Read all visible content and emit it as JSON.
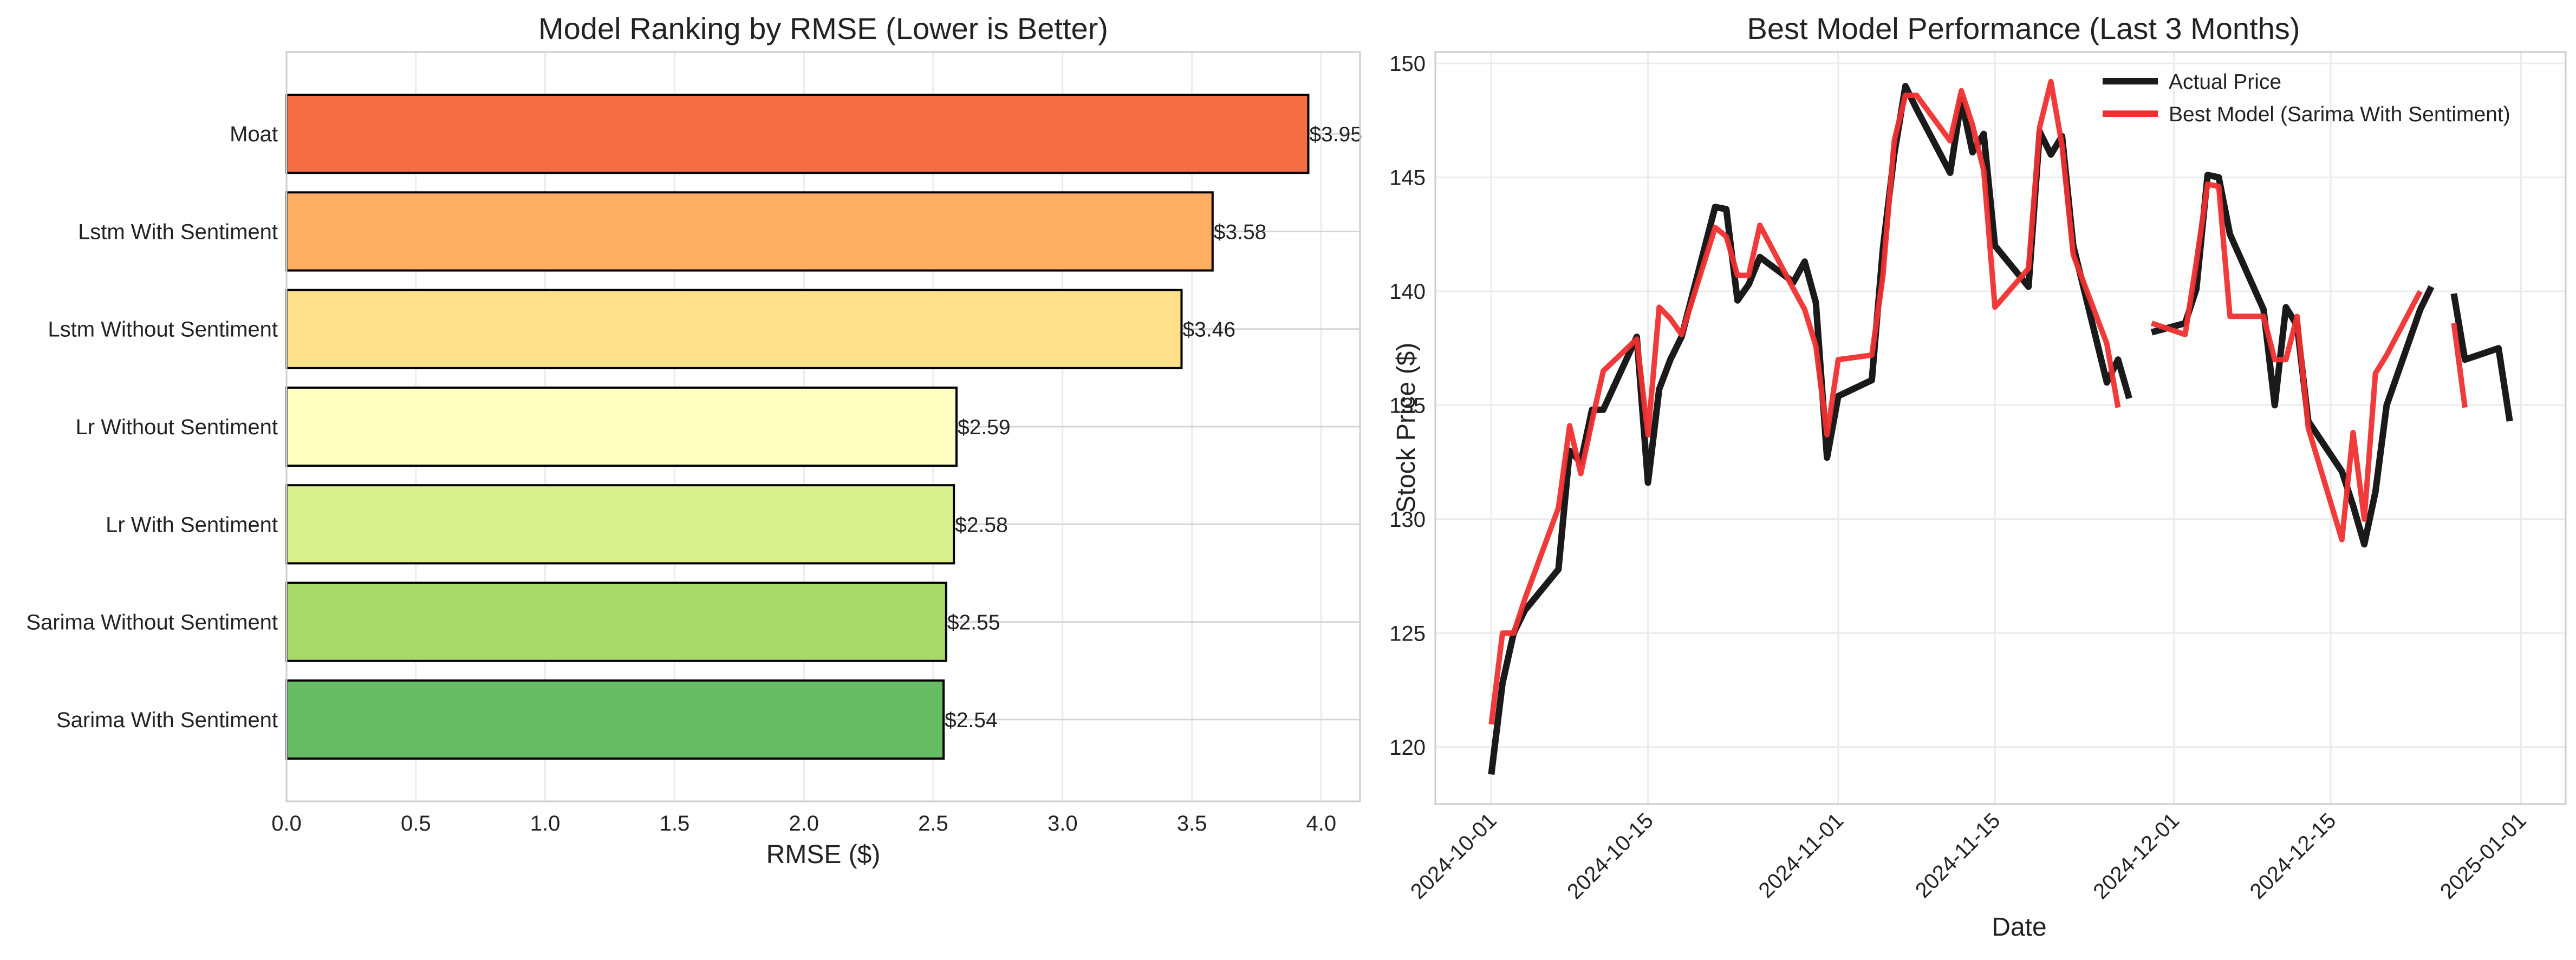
{
  "chart_data": [
    {
      "type": "bar",
      "orientation": "horizontal",
      "title": "Model Ranking by RMSE (Lower is Better)",
      "xlabel": "RMSE ($)",
      "ylabel": "",
      "xlim": [
        0,
        4.15
      ],
      "xticks": [
        "0.0",
        "0.5",
        "1.0",
        "1.5",
        "2.0",
        "2.5",
        "3.0",
        "3.5",
        "4.0"
      ],
      "grid": true,
      "categories": [
        "Moat",
        "Lstm With Sentiment",
        "Lstm Without Sentiment",
        "Lr Without Sentiment",
        "Lr With Sentiment",
        "Sarima Without Sentiment",
        "Sarima With Sentiment"
      ],
      "values": [
        3.95,
        3.58,
        3.46,
        2.59,
        2.58,
        2.55,
        2.54
      ],
      "data_labels": [
        "$3.95",
        "$3.58",
        "$3.46",
        "$2.59",
        "$2.58",
        "$2.55",
        "$2.54"
      ],
      "colors": [
        "#f46d43",
        "#fdae61",
        "#fee08b",
        "#ffffbf",
        "#d9ef8b",
        "#a6d96a",
        "#66bd63"
      ]
    },
    {
      "type": "line",
      "title": "Best Model Performance (Last 3 Months)",
      "xlabel": "Date",
      "ylabel": "Stock Price ($)",
      "ylim": [
        117.5,
        150.5
      ],
      "yticks": [
        "120",
        "125",
        "130",
        "135",
        "140",
        "145",
        "150"
      ],
      "xticks": [
        "2024-10-01",
        "2024-10-15",
        "2024-11-01",
        "2024-11-15",
        "2024-12-01",
        "2024-12-15",
        "2025-01-01"
      ],
      "grid": true,
      "legend_position": "top-right",
      "series": [
        {
          "name": "Actual Price",
          "color": "#1a1a1a",
          "segments": [
            [
              [
                "2024-10-01",
                118.8
              ],
              [
                "2024-10-02",
                122.8
              ],
              [
                "2024-10-03",
                125.0
              ],
              [
                "2024-10-04",
                126.0
              ],
              [
                "2024-10-07",
                127.8
              ],
              [
                "2024-10-08",
                133.0
              ],
              [
                "2024-10-09",
                132.5
              ],
              [
                "2024-10-10",
                134.8
              ],
              [
                "2024-10-11",
                134.8
              ],
              [
                "2024-10-14",
                138.0
              ],
              [
                "2024-10-15",
                131.6
              ],
              [
                "2024-10-16",
                135.7
              ],
              [
                "2024-10-17",
                137.0
              ],
              [
                "2024-10-18",
                138.0
              ],
              [
                "2024-10-21",
                143.7
              ],
              [
                "2024-10-22",
                143.6
              ],
              [
                "2024-10-23",
                139.6
              ],
              [
                "2024-10-24",
                140.3
              ],
              [
                "2024-10-25",
                141.5
              ],
              [
                "2024-10-28",
                140.4
              ],
              [
                "2024-10-29",
                141.3
              ],
              [
                "2024-10-30",
                139.5
              ],
              [
                "2024-10-31",
                132.7
              ],
              [
                "2024-11-01",
                135.4
              ],
              [
                "2024-11-04",
                136.1
              ],
              [
                "2024-11-05",
                141.9
              ],
              [
                "2024-11-06",
                146.0
              ],
              [
                "2024-11-07",
                149.0
              ],
              [
                "2024-11-08",
                148.0
              ],
              [
                "2024-11-11",
                145.2
              ],
              [
                "2024-11-12",
                148.4
              ],
              [
                "2024-11-13",
                146.1
              ],
              [
                "2024-11-14",
                146.9
              ],
              [
                "2024-11-15",
                142.0
              ],
              [
                "2024-11-18",
                140.2
              ],
              [
                "2024-11-19",
                147.0
              ],
              [
                "2024-11-20",
                146.0
              ],
              [
                "2024-11-21",
                146.8
              ],
              [
                "2024-11-22",
                142.0
              ],
              [
                "2024-11-25",
                136.0
              ],
              [
                "2024-11-26",
                137.0
              ],
              [
                "2024-11-27",
                135.3
              ]
            ],
            [
              [
                "2024-11-29",
                138.2
              ],
              [
                "2024-12-02",
                138.6
              ],
              [
                "2024-12-03",
                140.1
              ],
              [
                "2024-12-04",
                145.1
              ],
              [
                "2024-12-05",
                145.0
              ],
              [
                "2024-12-06",
                142.5
              ],
              [
                "2024-12-09",
                139.2
              ],
              [
                "2024-12-10",
                135.0
              ],
              [
                "2024-12-11",
                139.3
              ],
              [
                "2024-12-12",
                138.5
              ],
              [
                "2024-12-13",
                134.3
              ],
              [
                "2024-12-16",
                132.1
              ],
              [
                "2024-12-17",
                130.6
              ],
              [
                "2024-12-18",
                128.9
              ],
              [
                "2024-12-19",
                131.2
              ],
              [
                "2024-12-20",
                135.0
              ],
              [
                "2024-12-23",
                139.2
              ],
              [
                "2024-12-24",
                140.2
              ]
            ],
            [
              [
                "2024-12-26",
                139.9
              ],
              [
                "2024-12-27",
                137.0
              ],
              [
                "2024-12-30",
                137.5
              ],
              [
                "2024-12-31",
                134.3
              ]
            ]
          ]
        },
        {
          "name": "Best Model (Sarima With Sentiment)",
          "color": "#f03030",
          "segments": [
            [
              [
                "2024-10-01",
                121.0
              ],
              [
                "2024-10-02",
                125.0
              ],
              [
                "2024-10-03",
                125.0
              ],
              [
                "2024-10-04",
                126.5
              ],
              [
                "2024-10-07",
                130.5
              ],
              [
                "2024-10-08",
                134.1
              ],
              [
                "2024-10-09",
                132.0
              ],
              [
                "2024-10-10",
                134.3
              ],
              [
                "2024-10-11",
                136.5
              ],
              [
                "2024-10-14",
                137.9
              ],
              [
                "2024-10-15",
                133.7
              ],
              [
                "2024-10-16",
                139.3
              ],
              [
                "2024-10-17",
                138.8
              ],
              [
                "2024-10-18",
                138.1
              ],
              [
                "2024-10-21",
                142.8
              ],
              [
                "2024-10-22",
                142.4
              ],
              [
                "2024-10-23",
                140.7
              ],
              [
                "2024-10-24",
                140.7
              ],
              [
                "2024-10-25",
                142.9
              ],
              [
                "2024-10-28",
                140.1
              ],
              [
                "2024-10-29",
                139.2
              ],
              [
                "2024-10-30",
                137.6
              ],
              [
                "2024-10-31",
                133.7
              ],
              [
                "2024-11-01",
                137.0
              ],
              [
                "2024-11-04",
                137.2
              ],
              [
                "2024-11-05",
                140.7
              ],
              [
                "2024-11-06",
                146.6
              ],
              [
                "2024-11-07",
                148.6
              ],
              [
                "2024-11-08",
                148.6
              ],
              [
                "2024-11-11",
                146.6
              ],
              [
                "2024-11-12",
                148.8
              ],
              [
                "2024-11-13",
                147.3
              ],
              [
                "2024-11-14",
                145.3
              ],
              [
                "2024-11-15",
                139.3
              ],
              [
                "2024-11-18",
                141.0
              ],
              [
                "2024-11-19",
                147.2
              ],
              [
                "2024-11-20",
                149.2
              ],
              [
                "2024-11-21",
                146.4
              ],
              [
                "2024-11-22",
                141.6
              ],
              [
                "2024-11-25",
                137.7
              ],
              [
                "2024-11-26",
                134.9
              ]
            ],
            [
              [
                "2024-11-29",
                138.6
              ],
              [
                "2024-12-02",
                138.1
              ],
              [
                "2024-12-03",
                141.3
              ],
              [
                "2024-12-04",
                144.7
              ],
              [
                "2024-12-05",
                144.6
              ],
              [
                "2024-12-06",
                138.9
              ],
              [
                "2024-12-09",
                138.9
              ],
              [
                "2024-12-10",
                137.0
              ],
              [
                "2024-12-11",
                137.0
              ],
              [
                "2024-12-12",
                138.9
              ],
              [
                "2024-12-13",
                134.0
              ],
              [
                "2024-12-16",
                129.1
              ],
              [
                "2024-12-17",
                133.8
              ],
              [
                "2024-12-18",
                130.0
              ],
              [
                "2024-12-19",
                136.4
              ],
              [
                "2024-12-20",
                137.2
              ],
              [
                "2024-12-23",
                140.0
              ]
            ],
            [
              [
                "2024-12-26",
                138.6
              ],
              [
                "2024-12-27",
                134.9
              ]
            ]
          ]
        }
      ]
    }
  ]
}
